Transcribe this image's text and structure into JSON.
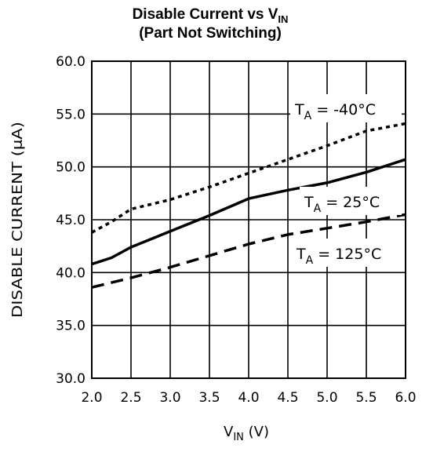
{
  "chart_data": {
    "type": "line",
    "title": {
      "main": "Disable Current vs V",
      "sub": "IN"
    },
    "subtitle": "(Part Not Switching)",
    "xlabel": {
      "main": "V",
      "sub": "IN",
      "unit": " (V)"
    },
    "ylabel": "DISABLE CURRENT (μA)",
    "xlim": [
      2.0,
      6.0
    ],
    "ylim": [
      30.0,
      60.0
    ],
    "xticks": [
      "2.0",
      "2.5",
      "3.0",
      "3.5",
      "4.0",
      "4.5",
      "5.0",
      "5.5",
      "6.0"
    ],
    "yticks": [
      "30.0",
      "35.0",
      "40.0",
      "45.0",
      "50.0",
      "55.0",
      "60.0"
    ],
    "grid": true,
    "series": [
      {
        "name": {
          "main": "T",
          "sub": "A",
          "rest": " = -40°C"
        },
        "style": "dotted",
        "x": [
          2.0,
          2.25,
          2.5,
          3.0,
          3.5,
          4.0,
          4.5,
          5.0,
          5.5,
          6.0
        ],
        "y": [
          43.8,
          44.8,
          46.0,
          46.9,
          48.1,
          49.4,
          50.7,
          52.0,
          53.4,
          54.1
        ]
      },
      {
        "name": {
          "main": "T",
          "sub": "A",
          "rest": " = 25°C"
        },
        "style": "solid",
        "x": [
          2.0,
          2.25,
          2.5,
          3.0,
          3.5,
          4.0,
          4.5,
          5.0,
          5.5,
          6.0
        ],
        "y": [
          40.8,
          41.4,
          42.4,
          43.9,
          45.4,
          47.0,
          47.8,
          48.5,
          49.5,
          50.7
        ]
      },
      {
        "name": {
          "main": "T",
          "sub": "A",
          "rest": " = 125°C"
        },
        "style": "dashed",
        "x": [
          2.0,
          2.5,
          3.0,
          3.5,
          4.0,
          4.5,
          5.0,
          5.5,
          6.0
        ],
        "y": [
          38.6,
          39.5,
          40.5,
          41.6,
          42.7,
          43.6,
          44.2,
          44.8,
          45.5
        ]
      }
    ]
  }
}
